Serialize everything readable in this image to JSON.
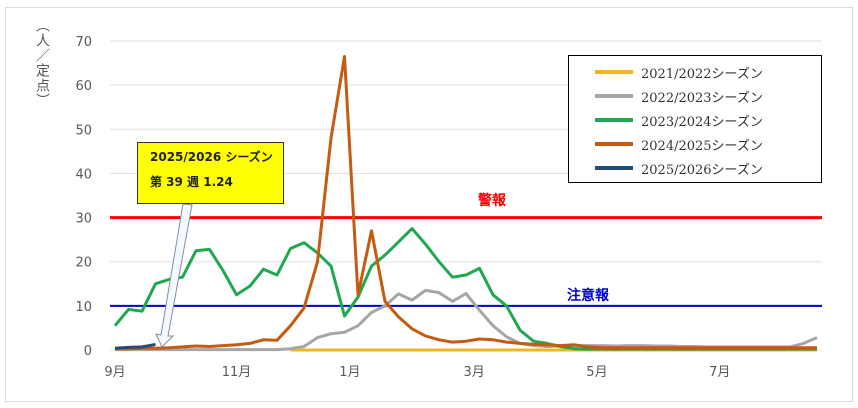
{
  "chart_data": {
    "type": "line",
    "ylabel": "（人／定点）",
    "ylim": [
      0,
      70
    ],
    "yticks": [
      0,
      10,
      20,
      30,
      40,
      50,
      60,
      70
    ],
    "x_ticks": [
      {
        "label": "9月",
        "index": 0
      },
      {
        "label": "11月",
        "index": 9
      },
      {
        "label": "1月",
        "index": 17.4
      },
      {
        "label": "3月",
        "index": 26.6
      },
      {
        "label": "5月",
        "index": 35.7
      },
      {
        "label": "7月",
        "index": 44.8
      }
    ],
    "grid": true,
    "legend_position": "top-right",
    "series": [
      {
        "name": "2021/2022シーズン",
        "color": "#f2b61c",
        "values": [
          null,
          null,
          null,
          null,
          null,
          null,
          null,
          null,
          null,
          null,
          null,
          null,
          null,
          0,
          0,
          0,
          0,
          0,
          0,
          0,
          0,
          0,
          0,
          0,
          0,
          0,
          0,
          0,
          0,
          0,
          0,
          0,
          0,
          0,
          0,
          0,
          0,
          0,
          0,
          0,
          0,
          0,
          0,
          0,
          0,
          0,
          0,
          0,
          0,
          0,
          0,
          0,
          0
        ]
      },
      {
        "name": "2022/2023シーズン",
        "color": "#a6a6a6",
        "values": [
          0.1,
          0.1,
          0.1,
          0.1,
          0.1,
          0.1,
          0.1,
          0.1,
          0.1,
          0.1,
          0.1,
          0.1,
          0.1,
          0.3,
          0.8,
          2.8,
          3.7,
          4,
          5.5,
          8.5,
          10,
          12.7,
          11.3,
          13.5,
          13,
          11,
          12.8,
          9,
          5.5,
          3,
          1.5,
          1,
          0.8,
          0.9,
          0.9,
          1,
          1,
          0.9,
          1,
          1,
          0.9,
          0.9,
          0.8,
          0.8,
          0.7,
          0.7,
          0.7,
          0.7,
          0.7,
          0.7,
          0.7,
          1.5,
          2.8
        ]
      },
      {
        "name": "2023/2024シーズン",
        "color": "#1fa84f",
        "values": [
          5.5,
          9.2,
          8.8,
          15,
          16,
          16.5,
          22.5,
          22.8,
          18,
          12.5,
          14.5,
          18.3,
          17,
          23,
          24.3,
          22,
          19,
          7.7,
          12,
          19,
          21.5,
          24.5,
          27.5,
          24,
          20,
          16.5,
          17,
          18.5,
          12.5,
          10,
          4.5,
          2,
          1.5,
          0.8,
          0.3,
          0.2,
          0.2,
          0.2,
          0.2,
          0.2,
          0.2,
          0.2,
          0.2,
          0.2,
          0.2,
          0.2,
          0.2,
          0.2,
          0.2,
          0.2,
          0.2,
          0.2,
          0.2
        ]
      },
      {
        "name": "2024/2025シーズン",
        "color": "#c55a11",
        "values": [
          0.3,
          0.3,
          0.4,
          0.4,
          0.5,
          0.7,
          0.9,
          0.8,
          1,
          1.2,
          1.5,
          2.3,
          2.2,
          5.5,
          9.5,
          20,
          48,
          66.5,
          12.5,
          27,
          11,
          7.5,
          4.8,
          3.2,
          2.3,
          1.8,
          2,
          2.5,
          2.3,
          1.8,
          1.5,
          1.3,
          1.2,
          1.0,
          1.2,
          0.7,
          0.5,
          0.5,
          0.5,
          0.5,
          0.5,
          0.5,
          0.5,
          0.5,
          0.5,
          0.5,
          0.5,
          0.5,
          0.5,
          0.5,
          0.5,
          0.5,
          0.5
        ]
      },
      {
        "name": "2025/2026シーズン",
        "color": "#1f4e79",
        "values": [
          0.4,
          0.6,
          0.7,
          1.24
        ]
      }
    ],
    "thresholds": [
      {
        "label": "警報",
        "value": 30,
        "color": "#ff0000"
      },
      {
        "label": "注意報",
        "value": 10,
        "color": "#0000cc"
      }
    ],
    "annotation": {
      "line1": "2025/2026 シーズン",
      "line2": "第 39 週  1.24"
    }
  }
}
